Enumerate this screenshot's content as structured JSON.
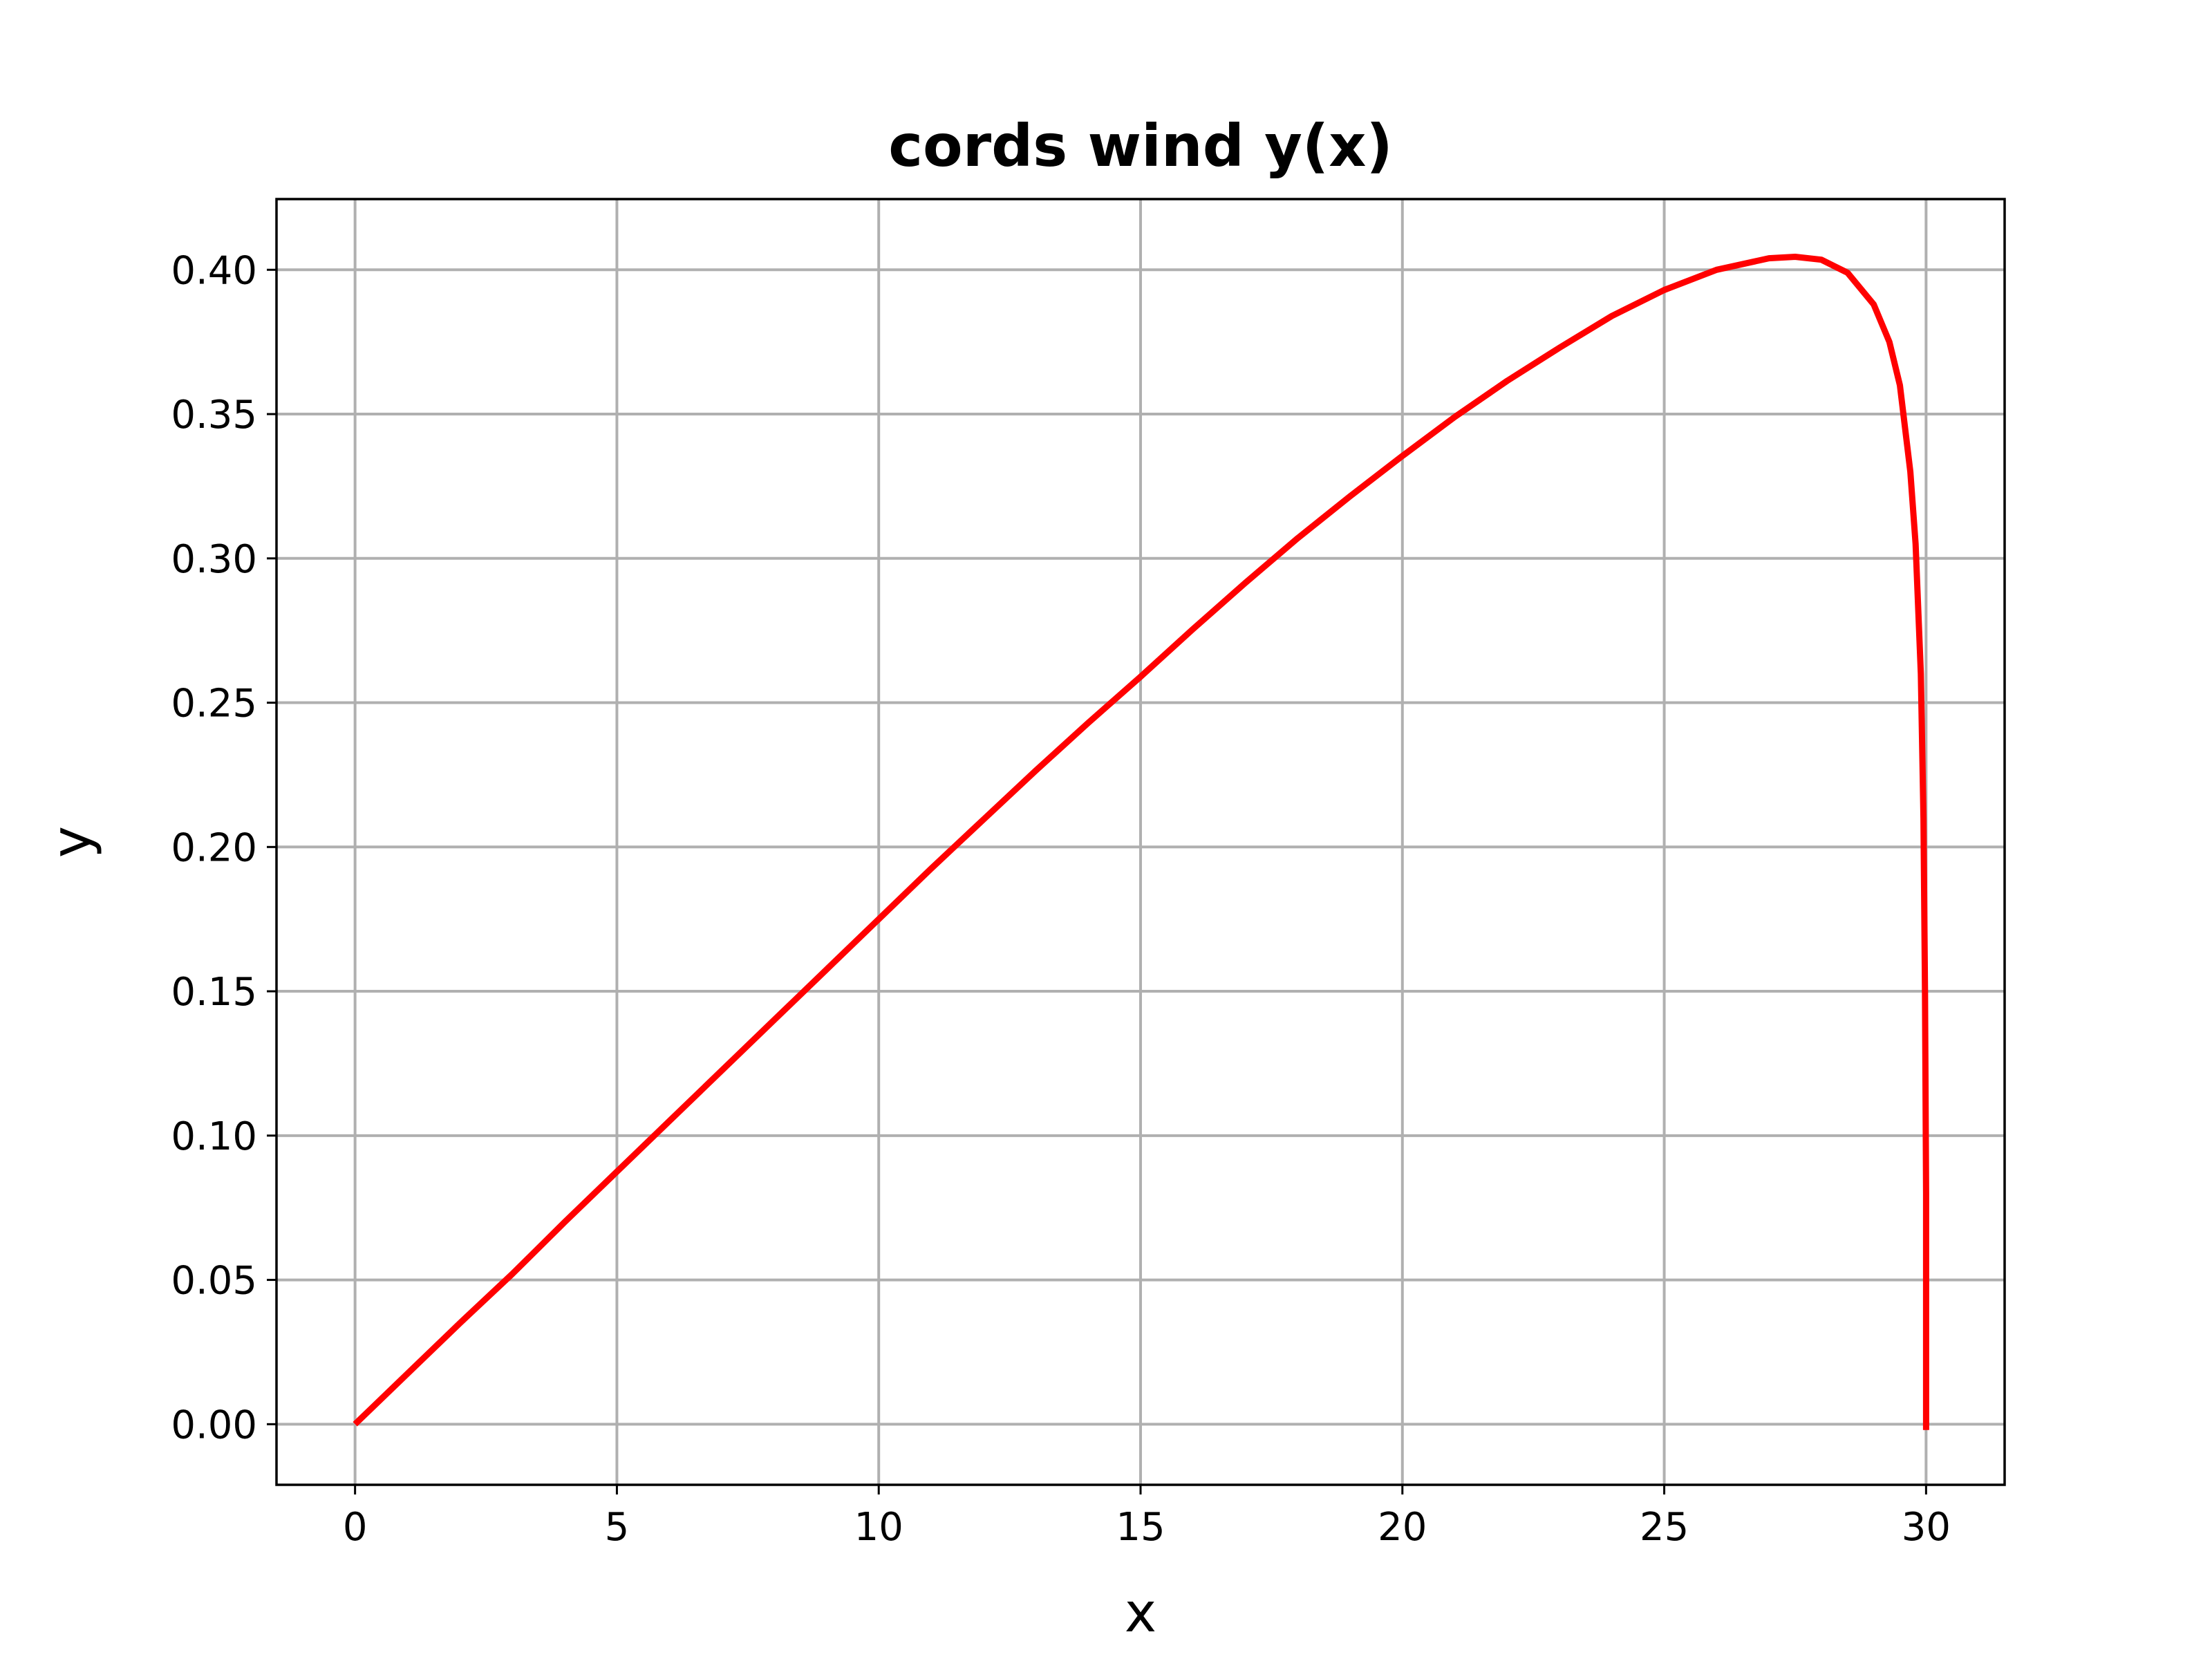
{
  "chart_data": {
    "type": "line",
    "title": "cords wind y(x)",
    "xlabel": "x",
    "ylabel": "y",
    "xlim": [
      -1.5,
      31.5
    ],
    "ylim": [
      -0.021,
      0.4245
    ],
    "xticks": [
      0,
      5,
      10,
      15,
      20,
      25,
      30
    ],
    "xtick_labels": [
      "0",
      "5",
      "10",
      "15",
      "20",
      "25",
      "30"
    ],
    "yticks": [
      0.0,
      0.05,
      0.1,
      0.15,
      0.2,
      0.25,
      0.3,
      0.35,
      0.4
    ],
    "ytick_labels": [
      "0.00",
      "0.05",
      "0.10",
      "0.15",
      "0.20",
      "0.25",
      "0.30",
      "0.35",
      "0.40"
    ],
    "grid": true,
    "series": [
      {
        "color": "#ff0000",
        "x": [
          0,
          1,
          2,
          3,
          4,
          5,
          6,
          7,
          8,
          9,
          10,
          11,
          12,
          13,
          14,
          15,
          16,
          17,
          18,
          19,
          20,
          21,
          22,
          23,
          24,
          25,
          26,
          27,
          27.5,
          28,
          28.5,
          29,
          29.3,
          29.5,
          29.7,
          29.8,
          29.9,
          29.95,
          29.98,
          30,
          30
        ],
        "y": [
          0.0,
          0.0175,
          0.035,
          0.052,
          0.07,
          0.0875,
          0.105,
          0.1225,
          0.14,
          0.1575,
          0.175,
          0.1925,
          0.2095,
          0.2265,
          0.243,
          0.259,
          0.2755,
          0.2915,
          0.307,
          0.3215,
          0.3355,
          0.349,
          0.3615,
          0.373,
          0.384,
          0.393,
          0.4,
          0.404,
          0.4045,
          0.4035,
          0.399,
          0.388,
          0.375,
          0.36,
          0.33,
          0.305,
          0.26,
          0.21,
          0.15,
          0.08,
          -0.002
        ]
      }
    ]
  }
}
